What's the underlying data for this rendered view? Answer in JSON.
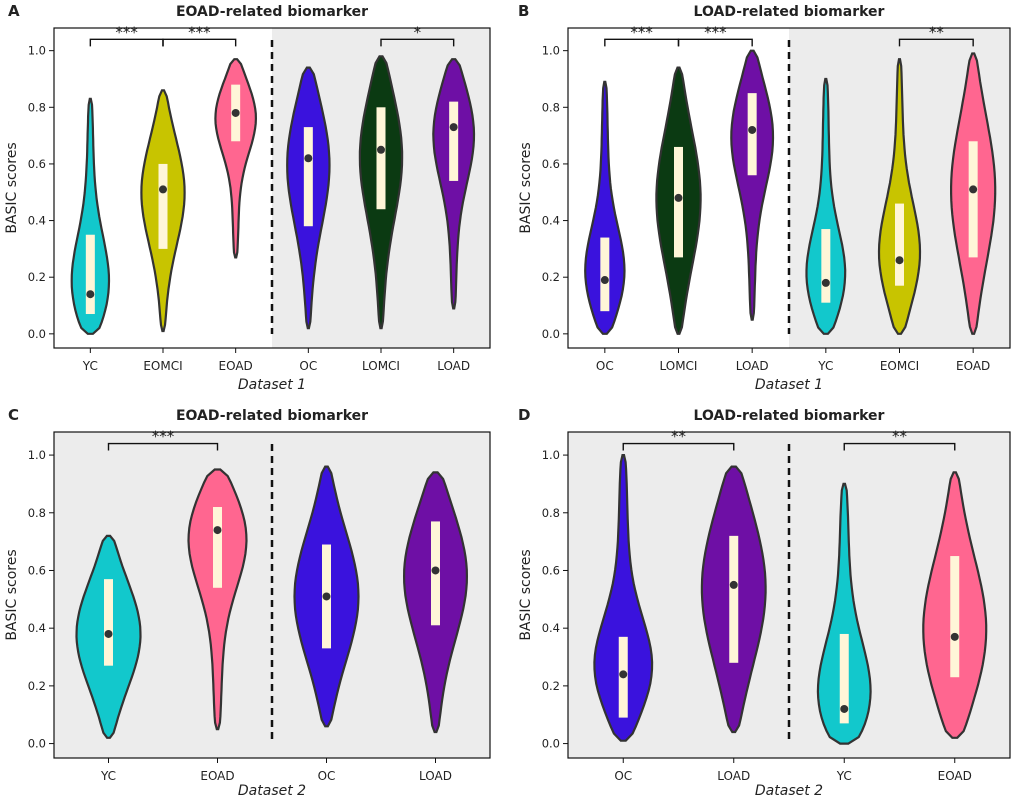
{
  "figure": {
    "yticks": [
      "0.0",
      "0.2",
      "0.4",
      "0.6",
      "0.8",
      "1.0"
    ],
    "colors": {
      "cyan": "#12c8cc",
      "olive": "#c8c400",
      "pink": "#ff6690",
      "blue": "#3a12dd",
      "darkgreen": "#0b3a12",
      "purple": "#6e0fa5",
      "iqr_box": "#fff6d8",
      "shade": "#ececec"
    }
  },
  "chart_data": [
    {
      "panel": "A",
      "type": "violin",
      "title": "EOAD-related biomarker",
      "ylabel": "BASIC scores",
      "xlabel": "Dataset 1",
      "ylim": [
        -0.05,
        1.08
      ],
      "shaded_group_start": 3,
      "groups": [
        {
          "name": "YC",
          "color": "cyan",
          "min": 0.0,
          "max": 0.83,
          "q1": 0.07,
          "q3": 0.35,
          "median": 0.14
        },
        {
          "name": "EOMCI",
          "color": "olive",
          "min": 0.01,
          "max": 0.86,
          "q1": 0.3,
          "q3": 0.6,
          "median": 0.51
        },
        {
          "name": "EOAD",
          "color": "pink",
          "min": 0.27,
          "max": 0.97,
          "q1": 0.68,
          "q3": 0.88,
          "median": 0.78
        },
        {
          "name": "OC",
          "color": "blue",
          "min": 0.02,
          "max": 0.94,
          "q1": 0.38,
          "q3": 0.73,
          "median": 0.62
        },
        {
          "name": "LOMCI",
          "color": "darkgreen",
          "min": 0.02,
          "max": 0.98,
          "q1": 0.44,
          "q3": 0.8,
          "median": 0.65
        },
        {
          "name": "LOAD",
          "color": "purple",
          "min": 0.09,
          "max": 0.97,
          "q1": 0.54,
          "q3": 0.82,
          "median": 0.73
        }
      ],
      "comparisons": [
        {
          "from": 0,
          "to": 1,
          "label": "***",
          "y": 1.04
        },
        {
          "from": 1,
          "to": 2,
          "label": "***",
          "y": 1.04
        },
        {
          "from": 4,
          "to": 5,
          "label": "*",
          "y": 1.04
        }
      ]
    },
    {
      "panel": "B",
      "type": "violin",
      "title": "LOAD-related biomarker",
      "ylabel": "BASIC scores",
      "xlabel": "Dataset 1",
      "ylim": [
        -0.05,
        1.08
      ],
      "shaded_group_start": 3,
      "groups": [
        {
          "name": "OC",
          "color": "blue",
          "min": 0.0,
          "max": 0.89,
          "q1": 0.08,
          "q3": 0.34,
          "median": 0.19
        },
        {
          "name": "LOMCI",
          "color": "darkgreen",
          "min": 0.0,
          "max": 0.94,
          "q1": 0.27,
          "q3": 0.66,
          "median": 0.48
        },
        {
          "name": "LOAD",
          "color": "purple",
          "min": 0.05,
          "max": 1.0,
          "q1": 0.56,
          "q3": 0.85,
          "median": 0.72
        },
        {
          "name": "YC",
          "color": "cyan",
          "min": 0.0,
          "max": 0.9,
          "q1": 0.11,
          "q3": 0.37,
          "median": 0.18
        },
        {
          "name": "EOMCI",
          "color": "olive",
          "min": 0.0,
          "max": 0.97,
          "q1": 0.17,
          "q3": 0.46,
          "median": 0.26
        },
        {
          "name": "EOAD",
          "color": "pink",
          "min": 0.0,
          "max": 0.99,
          "q1": 0.27,
          "q3": 0.68,
          "median": 0.51
        }
      ],
      "comparisons": [
        {
          "from": 0,
          "to": 1,
          "label": "***",
          "y": 1.04
        },
        {
          "from": 1,
          "to": 2,
          "label": "***",
          "y": 1.04
        },
        {
          "from": 4,
          "to": 5,
          "label": "**",
          "y": 1.04
        }
      ]
    },
    {
      "panel": "C",
      "type": "violin",
      "title": "EOAD-related biomarker",
      "ylabel": "BASIC scores",
      "xlabel": "Dataset 2",
      "ylim": [
        -0.05,
        1.08
      ],
      "shaded_group_start": 0,
      "groups": [
        {
          "name": "YC",
          "color": "cyan",
          "min": 0.02,
          "max": 0.72,
          "q1": 0.27,
          "q3": 0.57,
          "median": 0.38
        },
        {
          "name": "EOAD",
          "color": "pink",
          "min": 0.05,
          "max": 0.95,
          "q1": 0.54,
          "q3": 0.82,
          "median": 0.74
        },
        {
          "name": "OC",
          "color": "blue",
          "min": 0.06,
          "max": 0.96,
          "q1": 0.33,
          "q3": 0.69,
          "median": 0.51
        },
        {
          "name": "LOAD",
          "color": "purple",
          "min": 0.04,
          "max": 0.94,
          "q1": 0.41,
          "q3": 0.77,
          "median": 0.6
        }
      ],
      "comparisons": [
        {
          "from": 0,
          "to": 1,
          "label": "***",
          "y": 1.04
        }
      ]
    },
    {
      "panel": "D",
      "type": "violin",
      "title": "LOAD-related biomarker",
      "ylabel": "BASIC scores",
      "xlabel": "Dataset 2",
      "ylim": [
        -0.05,
        1.08
      ],
      "shaded_group_start": 0,
      "groups": [
        {
          "name": "OC",
          "color": "blue",
          "min": 0.01,
          "max": 1.0,
          "q1": 0.09,
          "q3": 0.37,
          "median": 0.24
        },
        {
          "name": "LOAD",
          "color": "purple",
          "min": 0.04,
          "max": 0.96,
          "q1": 0.28,
          "q3": 0.72,
          "median": 0.55
        },
        {
          "name": "YC",
          "color": "cyan",
          "min": 0.0,
          "max": 0.9,
          "q1": 0.07,
          "q3": 0.38,
          "median": 0.12
        },
        {
          "name": "EOAD",
          "color": "pink",
          "min": 0.02,
          "max": 0.94,
          "q1": 0.23,
          "q3": 0.65,
          "median": 0.37
        }
      ],
      "comparisons": [
        {
          "from": 0,
          "to": 1,
          "label": "**",
          "y": 1.04
        },
        {
          "from": 2,
          "to": 3,
          "label": "**",
          "y": 1.04
        }
      ]
    }
  ]
}
